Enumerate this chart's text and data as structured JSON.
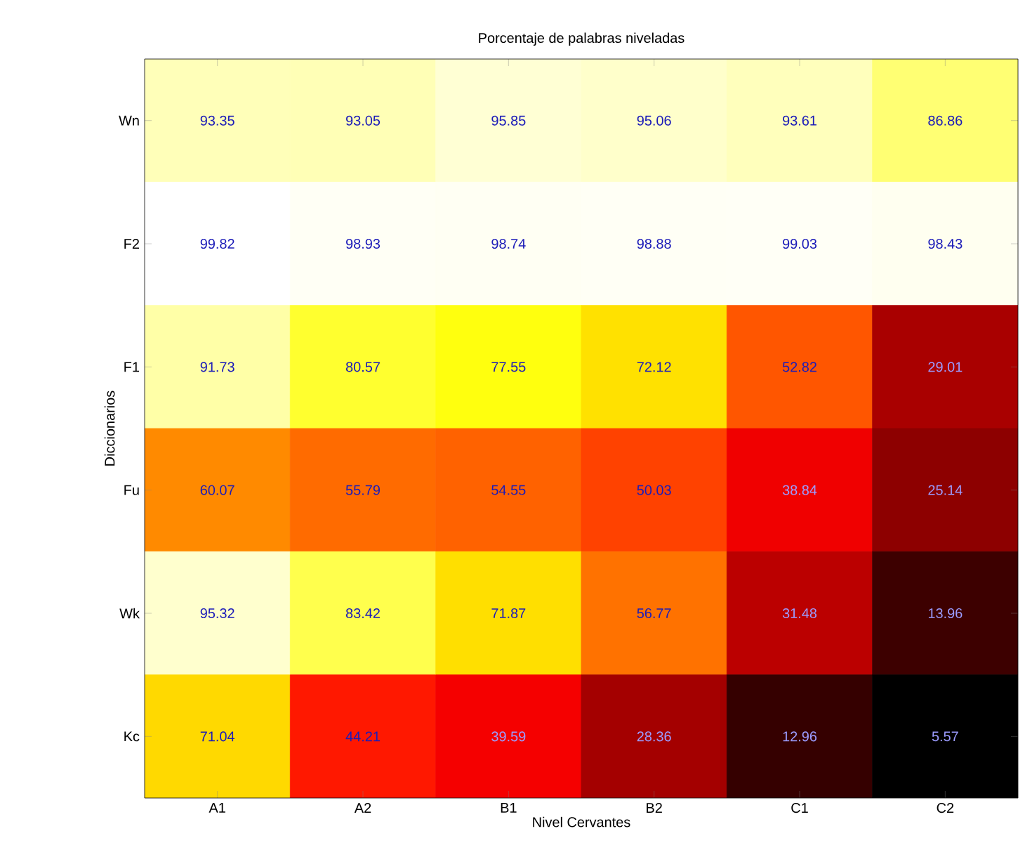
{
  "chart_data": {
    "type": "heatmap",
    "title": "Porcentaje de palabras niveladas",
    "xlabel": "Nivel Cervantes",
    "ylabel": "Diccionarios",
    "categories": [
      "A1",
      "A2",
      "B1",
      "B2",
      "C1",
      "C2"
    ],
    "y_categories": [
      "Wn",
      "F2",
      "F1",
      "Fu",
      "Wk",
      "Kc"
    ],
    "cells": [
      [
        93.35,
        93.05,
        95.85,
        95.06,
        93.61,
        86.86
      ],
      [
        99.82,
        98.93,
        98.74,
        98.88,
        99.03,
        98.43
      ],
      [
        91.73,
        80.57,
        77.55,
        72.12,
        52.82,
        29.01
      ],
      [
        60.07,
        55.79,
        54.55,
        50.03,
        38.84,
        25.14
      ],
      [
        95.32,
        83.42,
        71.87,
        56.77,
        31.48,
        13.96
      ],
      [
        71.04,
        44.21,
        39.59,
        28.36,
        12.96,
        5.57
      ]
    ],
    "data_labels": true
  }
}
